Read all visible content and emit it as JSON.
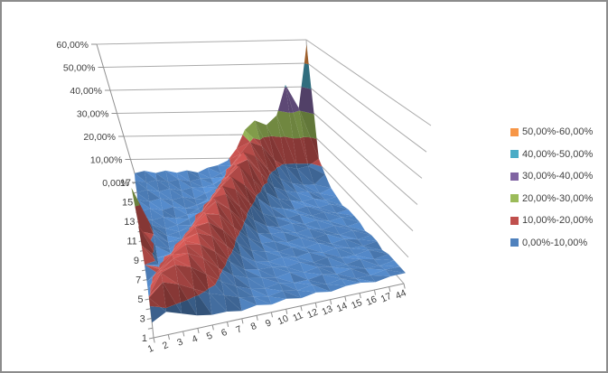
{
  "page": {
    "background": "#ffffff",
    "border_color": "#8c8c8c",
    "title": ""
  },
  "legend": {
    "position": "right",
    "entries": [
      {
        "label": "50,00%-60,00%",
        "color": "#F79646"
      },
      {
        "label": "40,00%-50,00%",
        "color": "#4BACC6"
      },
      {
        "label": "30,00%-40,00%",
        "color": "#8064A2"
      },
      {
        "label": "20,00%-30,00%",
        "color": "#9BBB59"
      },
      {
        "label": "10,00%-20,00%",
        "color": "#C0504D"
      },
      {
        "label": "0,00%-10,00%",
        "color": "#4F81BD"
      }
    ]
  },
  "chart_data": {
    "type": "heatmap",
    "subtype": "3d-surface",
    "title": "",
    "xlabel": "",
    "ylabel": "",
    "grid": true,
    "legend_position": "right",
    "value_axis": {
      "ticks": [
        "60,00%",
        "50,00%",
        "40,00%",
        "30,00%",
        "20,00%",
        "10,00%",
        "0,00%"
      ],
      "min": 0,
      "max": 60,
      "unit": "%"
    },
    "category_axis": {
      "labels": [
        "1",
        "2",
        "3",
        "4",
        "5",
        "6",
        "7",
        "8",
        "9",
        "10",
        "11",
        "12",
        "13",
        "14",
        "15",
        "16",
        "17",
        "44"
      ]
    },
    "series_axis": {
      "labels_shown": [
        "17",
        "15",
        "13",
        "11",
        "9",
        "7",
        "5",
        "3",
        "1"
      ],
      "rows_front_to_back": [
        "1",
        "2",
        "3",
        "4",
        "5",
        "6",
        "7",
        "8",
        "9",
        "10",
        "11",
        "12",
        "13",
        "14",
        "15",
        "16",
        "17"
      ]
    },
    "bands": [
      {
        "range": "0,00%-10,00%",
        "color": "#4F81BD"
      },
      {
        "range": "10,00%-20,00%",
        "color": "#C0504D"
      },
      {
        "range": "20,00%-30,00%",
        "color": "#9BBB59"
      },
      {
        "range": "30,00%-40,00%",
        "color": "#8064A2"
      },
      {
        "range": "40,00%-50,00%",
        "color": "#4BACC6"
      },
      {
        "range": "50,00%-60,00%",
        "color": "#F79646"
      }
    ],
    "values_note": "percent values, rows ordered series 1 (front) to 17 (back), 18 columns per row (categories 1-17 and 44)",
    "values": [
      [
        6,
        9,
        7,
        5,
        4,
        4,
        3,
        4,
        3,
        4,
        3,
        4,
        3,
        4,
        4,
        3,
        4,
        4
      ],
      [
        12,
        17,
        15,
        12,
        9,
        7,
        5,
        4,
        3,
        4,
        3,
        4,
        3,
        4,
        3,
        3,
        4,
        4
      ],
      [
        9,
        17,
        19,
        17,
        13,
        9,
        6,
        4,
        3,
        4,
        3,
        3,
        4,
        3,
        4,
        3,
        3,
        4
      ],
      [
        8,
        14,
        18,
        19,
        16,
        11,
        7,
        5,
        4,
        3,
        4,
        3,
        4,
        3,
        3,
        4,
        3,
        4
      ],
      [
        7,
        11,
        16,
        19,
        18,
        14,
        9,
        5,
        4,
        4,
        3,
        4,
        3,
        4,
        3,
        3,
        4,
        3
      ],
      [
        10,
        9,
        12,
        17,
        19,
        17,
        12,
        7,
        4,
        3,
        4,
        3,
        4,
        3,
        4,
        3,
        3,
        4
      ],
      [
        14,
        8,
        9,
        14,
        18,
        19,
        15,
        9,
        5,
        4,
        3,
        4,
        3,
        4,
        3,
        4,
        3,
        4
      ],
      [
        18,
        9,
        7,
        10,
        15,
        19,
        18,
        12,
        7,
        4,
        4,
        3,
        4,
        3,
        4,
        3,
        4,
        3
      ],
      [
        12,
        10,
        6,
        7,
        11,
        16,
        20,
        16,
        10,
        5,
        4,
        4,
        3,
        4,
        3,
        4,
        3,
        4
      ],
      [
        26,
        8,
        5,
        6,
        8,
        13,
        18,
        19,
        13,
        7,
        4,
        3,
        4,
        3,
        4,
        3,
        4,
        4
      ],
      [
        12,
        6,
        4,
        5,
        7,
        9,
        14,
        19,
        17,
        11,
        6,
        4,
        3,
        4,
        3,
        4,
        3,
        4
      ],
      [
        5,
        4,
        5,
        4,
        5,
        7,
        10,
        15,
        19,
        15,
        9,
        5,
        4,
        3,
        4,
        3,
        4,
        3
      ],
      [
        4,
        5,
        4,
        5,
        4,
        5,
        7,
        11,
        16,
        20,
        14,
        8,
        5,
        4,
        3,
        4,
        3,
        4
      ],
      [
        5,
        4,
        5,
        4,
        5,
        4,
        6,
        8,
        12,
        17,
        19,
        13,
        7,
        5,
        4,
        4,
        3,
        5
      ],
      [
        4,
        5,
        4,
        5,
        4,
        5,
        5,
        6,
        9,
        14,
        19,
        17,
        11,
        7,
        5,
        4,
        4,
        8
      ],
      [
        5,
        4,
        5,
        4,
        5,
        4,
        5,
        5,
        7,
        10,
        15,
        20,
        18,
        12,
        9,
        8,
        9,
        12
      ],
      [
        4,
        5,
        4,
        5,
        4,
        5,
        4,
        6,
        7,
        9,
        14,
        22,
        26,
        24,
        28,
        41,
        31,
        58
      ]
    ]
  }
}
